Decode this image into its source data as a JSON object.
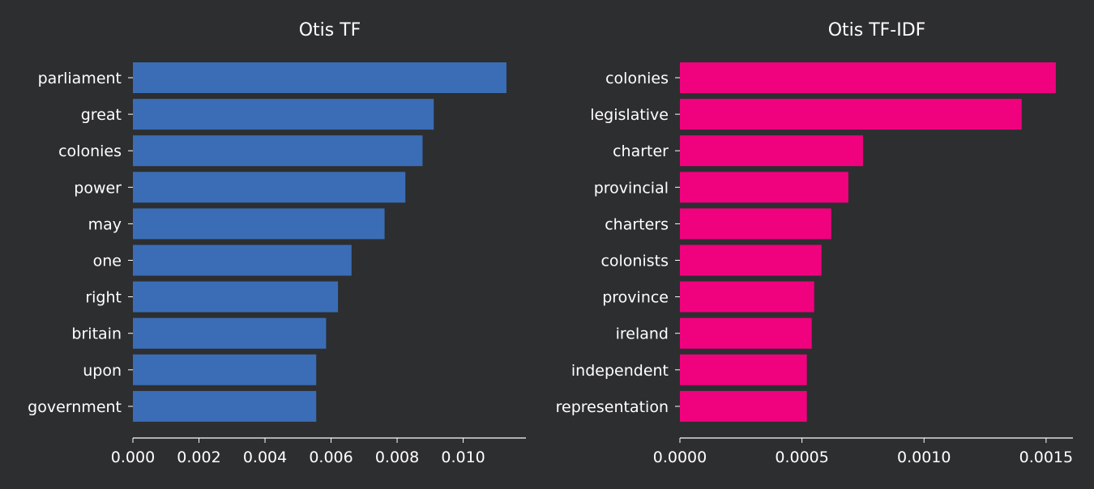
{
  "background_color": "#2d2e30",
  "chart_data": [
    {
      "type": "bar",
      "orientation": "horizontal",
      "title": "Otis TF",
      "color": "#3a6db5",
      "categories": [
        "parliament",
        "great",
        "colonies",
        "power",
        "may",
        "one",
        "right",
        "britain",
        "upon",
        "government"
      ],
      "values": [
        0.01131,
        0.00911,
        0.00877,
        0.00825,
        0.00762,
        0.00662,
        0.00621,
        0.00585,
        0.00555,
        0.00555
      ],
      "xlim": [
        0,
        0.0119
      ],
      "xticks": [
        "0.000",
        "0.002",
        "0.004",
        "0.006",
        "0.008",
        "0.010"
      ],
      "xtick_values": [
        0,
        0.002,
        0.004,
        0.006,
        0.008,
        0.01
      ],
      "grid": false
    },
    {
      "type": "bar",
      "orientation": "horizontal",
      "title": "Otis TF-IDF",
      "color": "#f0027f",
      "categories": [
        "colonies",
        "legislative",
        "charter",
        "provincial",
        "charters",
        "colonists",
        "province",
        "ireland",
        "independent",
        "representation"
      ],
      "values": [
        0.00154,
        0.0014,
        0.00075,
        0.00069,
        0.00062,
        0.00058,
        0.00055,
        0.00054,
        0.00052,
        0.00052
      ],
      "xlim": [
        0,
        0.00161
      ],
      "xticks": [
        "0.0000",
        "0.0005",
        "0.0010",
        "0.0015"
      ],
      "xtick_values": [
        0,
        0.0005,
        0.001,
        0.0015
      ],
      "grid": false
    }
  ]
}
